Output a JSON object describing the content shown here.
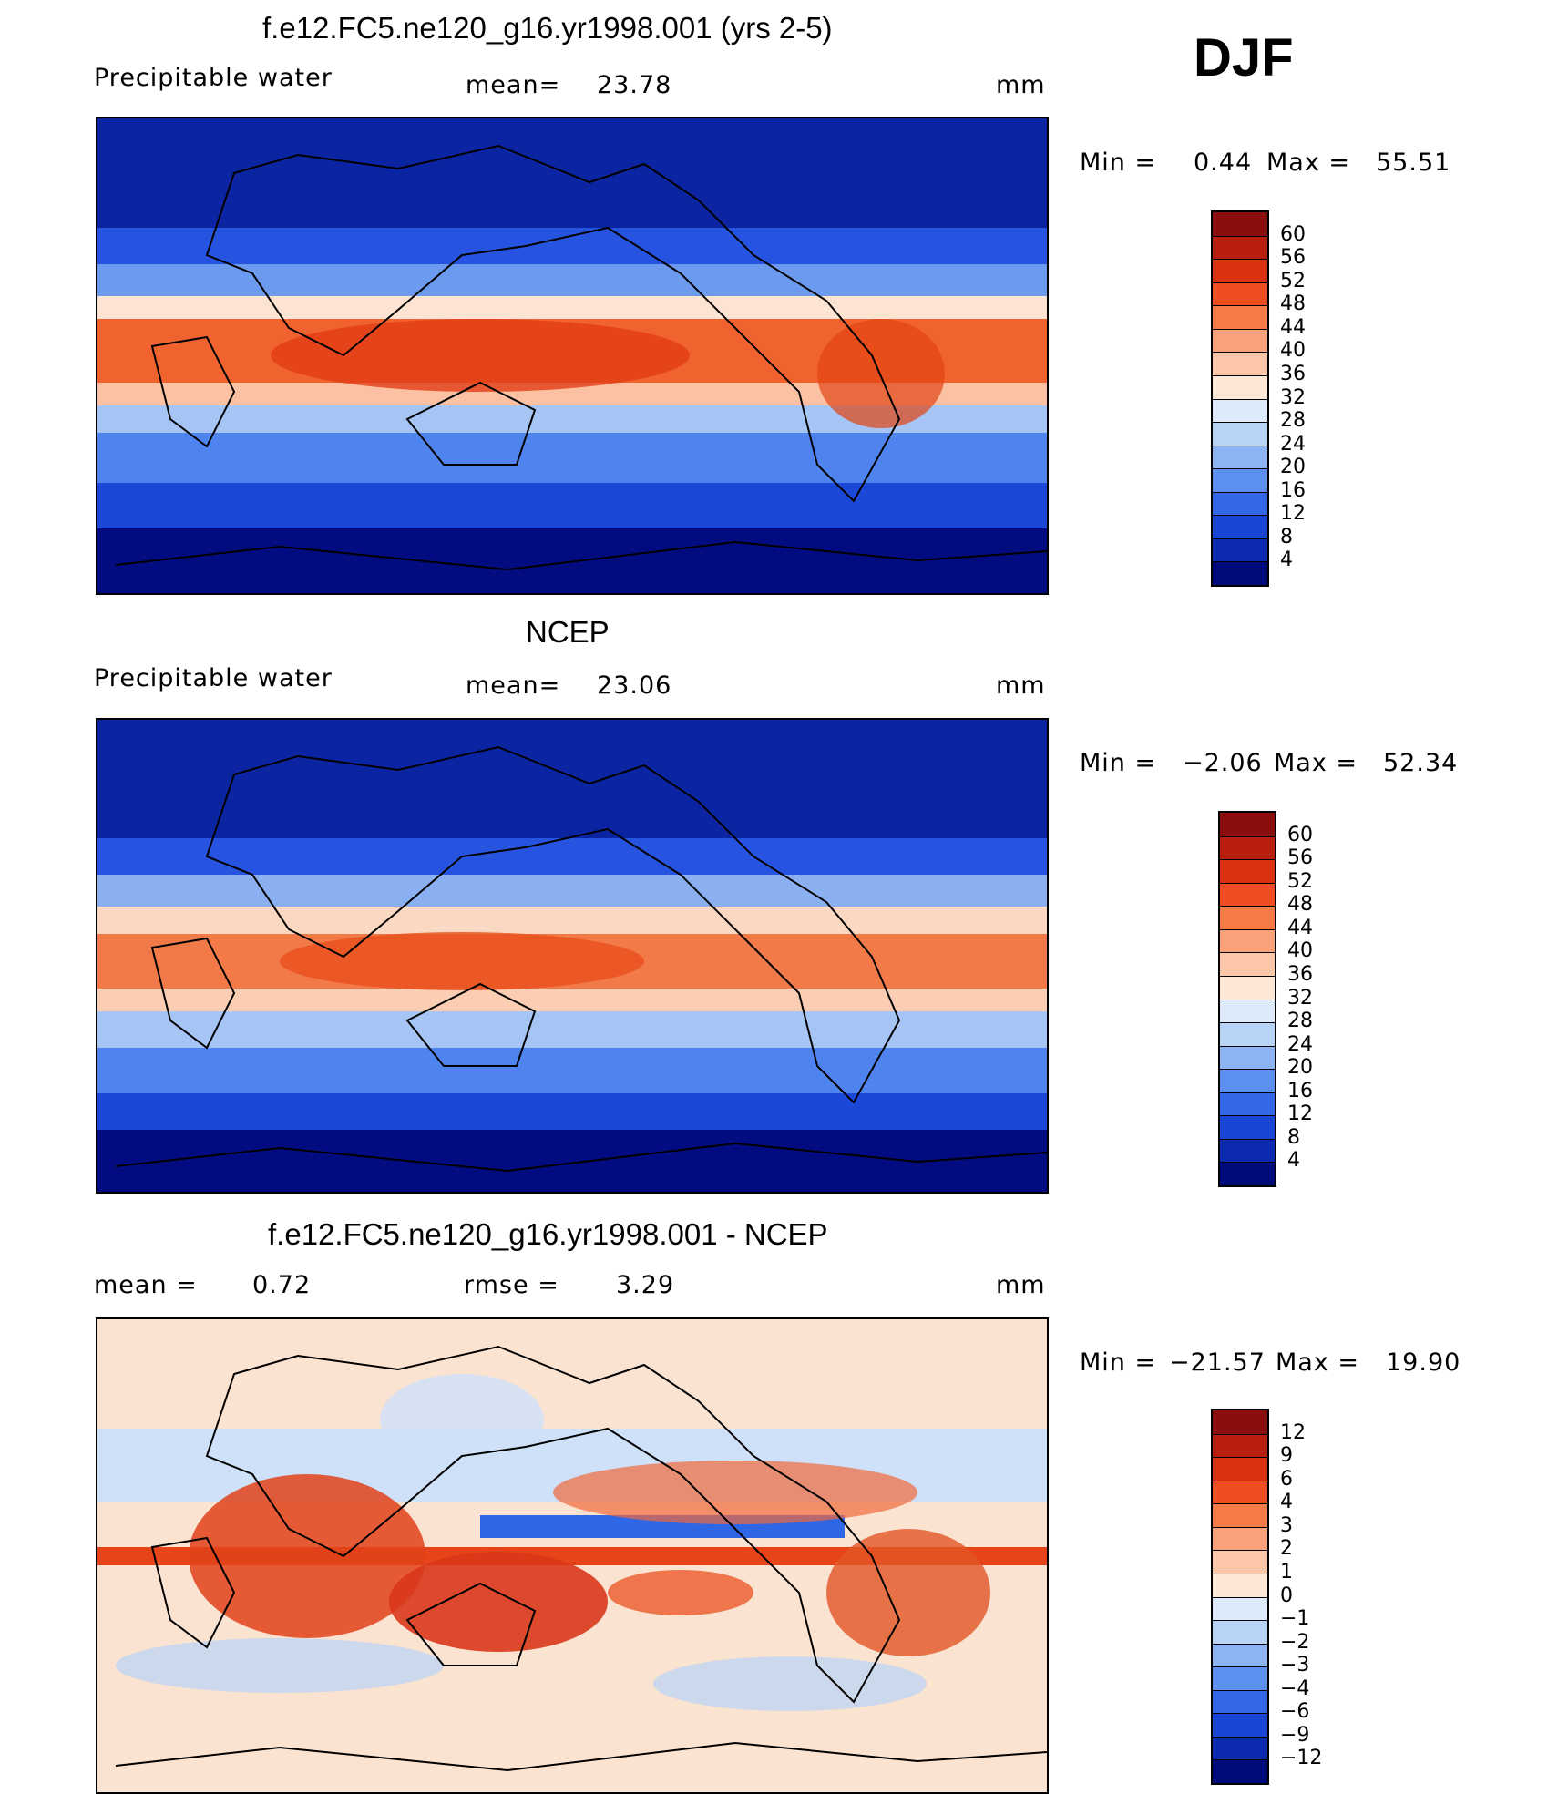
{
  "season_label": "DJF",
  "panels": [
    {
      "title": "f.e12.FC5.ne120_g16.yr1998.001 (yrs 2-5)",
      "variable": "Precipitable water",
      "stat_label": "mean=",
      "stat_value": "23.78",
      "units": "mm",
      "min_label": "Min =",
      "min_value": "0.44",
      "max_label": "Max =",
      "max_value": "55.51",
      "colorbar_ticks": [
        "60",
        "56",
        "52",
        "48",
        "44",
        "40",
        "36",
        "32",
        "28",
        "24",
        "20",
        "16",
        "12",
        "8",
        "4"
      ]
    },
    {
      "title": "NCEP",
      "variable": "Precipitable water",
      "stat_label": "mean=",
      "stat_value": "23.06",
      "units": "mm",
      "min_label": "Min =",
      "min_value": "−2.06",
      "max_label": "Max =",
      "max_value": "52.34",
      "colorbar_ticks": [
        "60",
        "56",
        "52",
        "48",
        "44",
        "40",
        "36",
        "32",
        "28",
        "24",
        "20",
        "16",
        "12",
        "8",
        "4"
      ]
    },
    {
      "title": "f.e12.FC5.ne120_g16.yr1998.001 - NCEP",
      "mean_label": "mean =",
      "mean_value": "0.72",
      "rmse_label": "rmse =",
      "rmse_value": "3.29",
      "units": "mm",
      "min_label": "Min =",
      "min_value": "−21.57",
      "max_label": "Max =",
      "max_value": "19.90",
      "colorbar_ticks": [
        "12",
        "9",
        "6",
        "4",
        "3",
        "2",
        "1",
        "0",
        "−1",
        "−2",
        "−3",
        "−4",
        "−6",
        "−9",
        "−12"
      ]
    }
  ],
  "colors": {
    "scale16": [
      "#8b0e0e",
      "#b81f0f",
      "#dd3212",
      "#ef4d22",
      "#f57b48",
      "#f9a27a",
      "#fcc6a8",
      "#fde7d6",
      "#dceafa",
      "#b8d3f6",
      "#8cb3f2",
      "#5c8ff0",
      "#3468e8",
      "#1a46d6",
      "#0b2ab0",
      "#010a7a"
    ]
  }
}
